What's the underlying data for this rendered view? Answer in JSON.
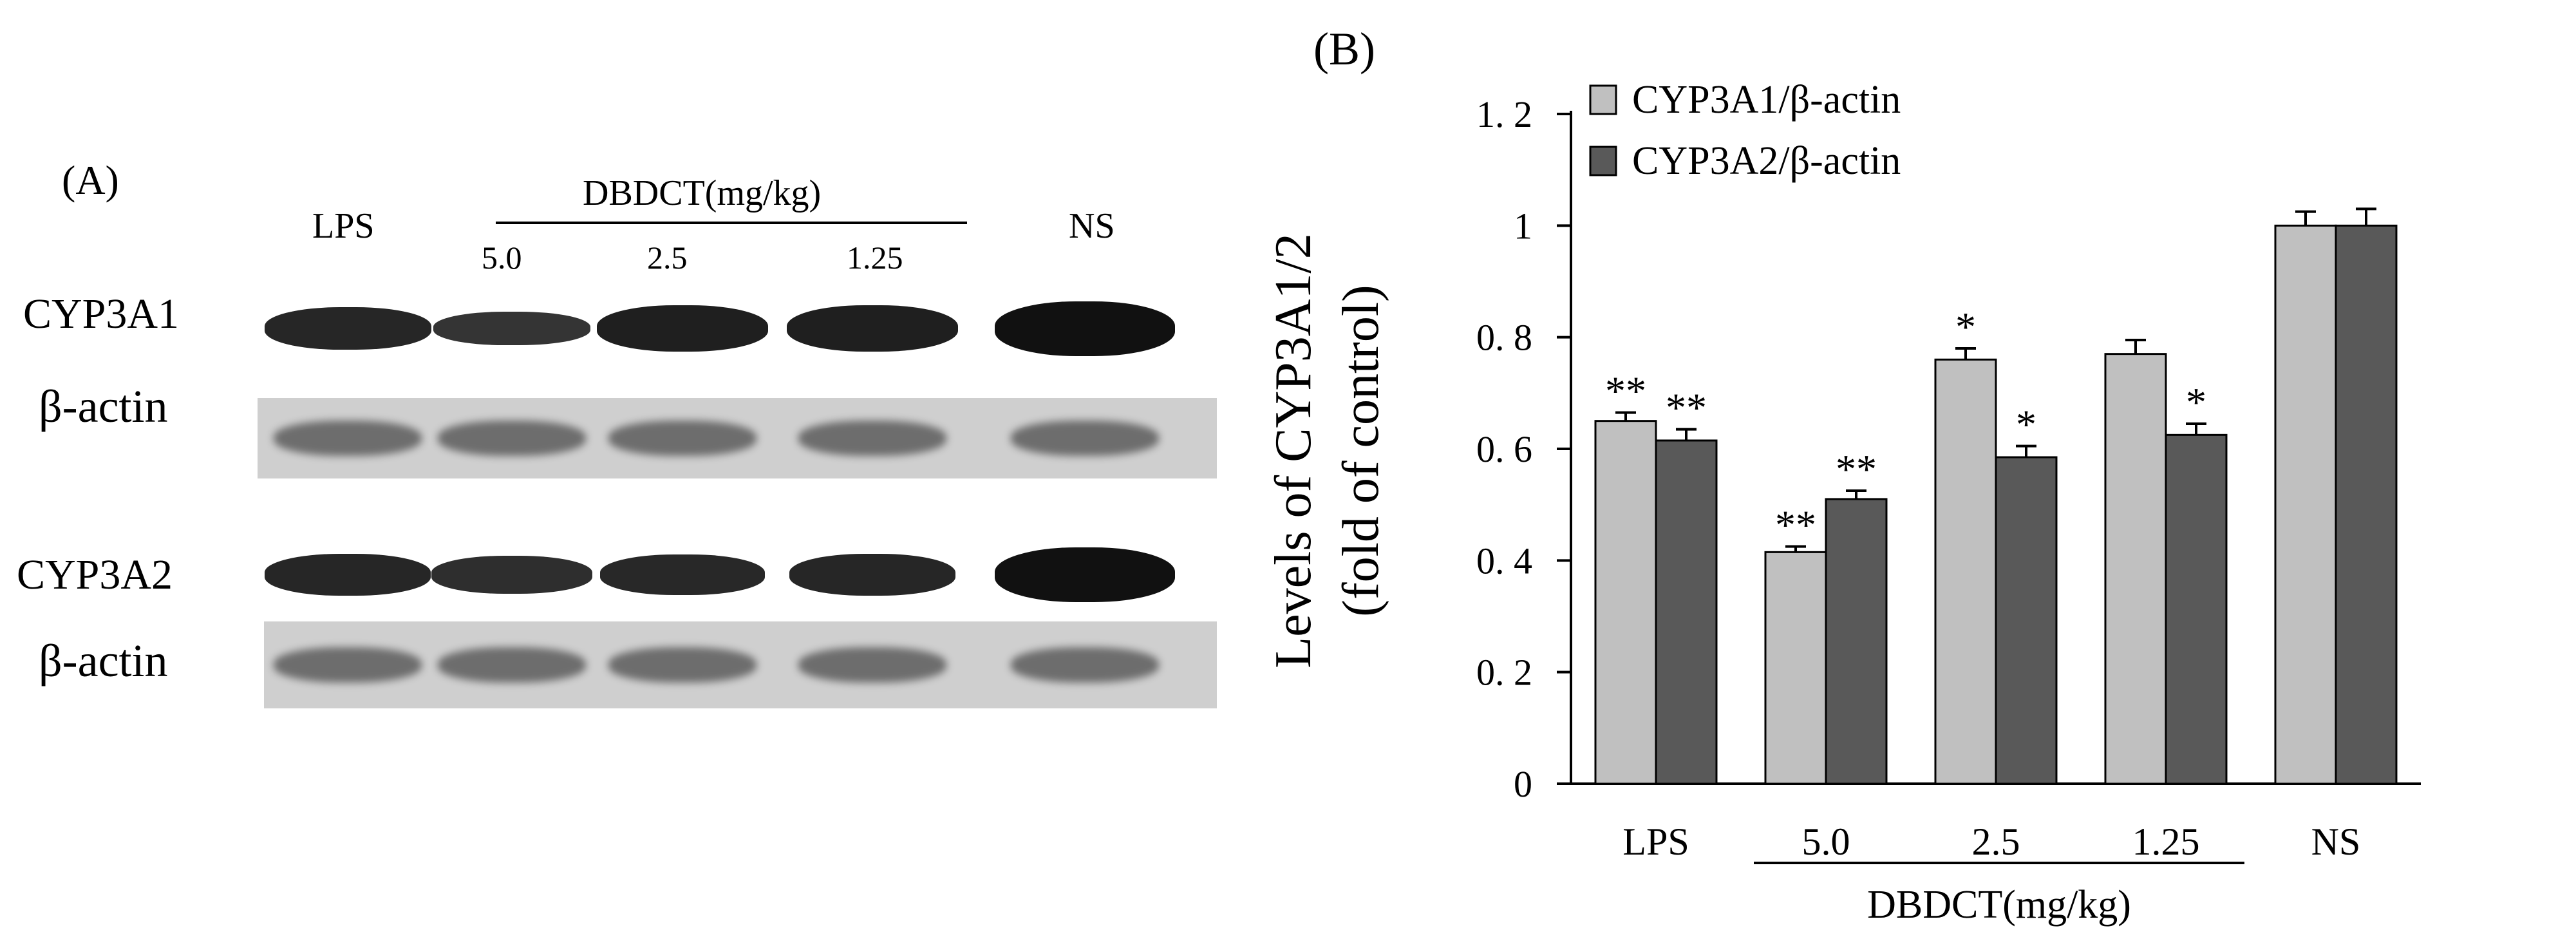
{
  "panel_a": {
    "label": "(A)",
    "lanes": [
      "LPS",
      "5.0",
      "2.5",
      "1.25",
      "NS"
    ],
    "group_label": "DBDCT(mg/kg)",
    "rows": [
      {
        "name": "CYP3A1",
        "type": "target"
      },
      {
        "name": "β-actin",
        "type": "control"
      },
      {
        "name": "CYP3A2",
        "type": "target"
      },
      {
        "name": "β-actin",
        "type": "control"
      }
    ],
    "band_intensity": {
      "CYP3A1": [
        0.65,
        0.41,
        0.76,
        0.77,
        1.0
      ],
      "CYP3A2": [
        0.62,
        0.51,
        0.59,
        0.63,
        1.0
      ]
    },
    "colors": {
      "band": "#111111",
      "strip": "#cccccc",
      "control_band": "#555555"
    }
  },
  "panel_b": {
    "label": "(B)"
  },
  "chart_data": {
    "type": "bar",
    "categories": [
      "LPS",
      "5.0",
      "2.5",
      "1.25",
      "NS"
    ],
    "group_label": "DBDCT(mg/kg)",
    "grouped_categories": [
      "5.0",
      "2.5",
      "1.25"
    ],
    "ylabel_line1": "Levels of CYP3A1/2",
    "ylabel_line2": "(fold of control)",
    "ylim": [
      0,
      1.2
    ],
    "yticks": [
      0,
      0.2,
      0.4,
      0.6,
      0.8,
      1,
      1.2
    ],
    "ytick_labels": [
      "0",
      "0. 2",
      "0. 4",
      "0. 6",
      "0. 8",
      "1",
      "1. 2"
    ],
    "legend_position": "top-left",
    "grid": false,
    "series": [
      {
        "name": "CYP3A1/β-actin",
        "color": "#c0c0c0",
        "values": [
          0.65,
          0.415,
          0.76,
          0.77,
          1.0
        ],
        "errors": [
          0.015,
          0.01,
          0.02,
          0.025,
          0.025
        ],
        "significance": [
          "**",
          "**",
          "*",
          "",
          ""
        ]
      },
      {
        "name": "CYP3A2/β-actin",
        "color": "#595959",
        "values": [
          0.615,
          0.51,
          0.585,
          0.625,
          1.0
        ],
        "errors": [
          0.02,
          0.015,
          0.02,
          0.02,
          0.03
        ],
        "significance": [
          "**",
          "**",
          "*",
          "*",
          ""
        ]
      }
    ]
  }
}
